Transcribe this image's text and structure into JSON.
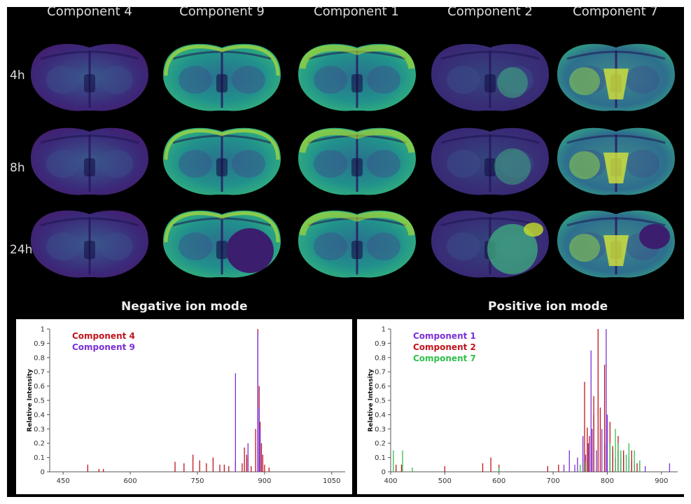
{
  "figure": {
    "columns": [
      "Component 4",
      "Component 9",
      "Component 1",
      "Component 2",
      "Component 7"
    ],
    "rows": [
      "4h",
      "8h",
      "24h"
    ],
    "hot_spots": {
      "Component 4": "none",
      "Component 9": "cortex-rim",
      "Component 1": "upper-cortex",
      "Component 2": "right-hemisphere",
      "Component 7": "central-striatum"
    }
  },
  "colors": {
    "comp4": "#c0141b",
    "comp9": "#7b2fd6",
    "comp1": "#7b2fd6",
    "comp2": "#c0141b",
    "comp7": "#2ec04a",
    "background": "#000000"
  },
  "chart_data": [
    {
      "type": "bar",
      "title": "Negative ion mode",
      "ylabel": "Relative Intensity",
      "xlim": [
        420,
        1080
      ],
      "ylim": [
        0,
        1
      ],
      "xticks": [
        450,
        600,
        750,
        900,
        1050
      ],
      "yticks": [
        0,
        0.1,
        0.2,
        0.3,
        0.4,
        0.5,
        0.6,
        0.7,
        0.8,
        0.9,
        1
      ],
      "legend_position": "top-left",
      "series": [
        {
          "name": "Component 4",
          "color": "#c0141b",
          "x": [
            505,
            530,
            540,
            700,
            720,
            740,
            755,
            770,
            785,
            800,
            810,
            820,
            835,
            850,
            855,
            860,
            863,
            870,
            880,
            885,
            888,
            890,
            893,
            896,
            900,
            910
          ],
          "values": [
            0.05,
            0.02,
            0.02,
            0.07,
            0.06,
            0.12,
            0.08,
            0.06,
            0.1,
            0.05,
            0.05,
            0.04,
            0.07,
            0.06,
            0.17,
            0.12,
            0.1,
            0.04,
            0.3,
            1.0,
            0.6,
            0.35,
            0.2,
            0.12,
            0.05,
            0.03
          ]
        },
        {
          "name": "Component 9",
          "color": "#7b2fd6",
          "x": [
            835,
            863,
            885,
            888,
            890
          ],
          "values": [
            0.69,
            0.2,
            0.98,
            0.45,
            0.3
          ]
        }
      ]
    },
    {
      "type": "bar",
      "title": "Positive ion mode",
      "ylabel": "Relative Intensity",
      "xlim": [
        400,
        930
      ],
      "ylim": [
        0,
        1
      ],
      "xticks": [
        400,
        500,
        600,
        700,
        800,
        900
      ],
      "yticks": [
        0,
        0.1,
        0.2,
        0.3,
        0.4,
        0.5,
        0.6,
        0.7,
        0.8,
        0.9,
        1
      ],
      "legend_position": "top-left",
      "series": [
        {
          "name": "Component 1",
          "color": "#7b2fd6",
          "x": [
            720,
            730,
            740,
            745,
            755,
            760,
            765,
            770,
            772,
            775,
            780,
            790,
            795,
            798,
            800,
            805,
            810,
            815,
            820,
            825,
            830,
            840,
            845,
            850,
            860,
            870,
            915
          ],
          "values": [
            0.05,
            0.15,
            0.05,
            0.1,
            0.25,
            0.12,
            0.2,
            0.85,
            0.3,
            0.4,
            0.15,
            0.3,
            0.2,
            1.0,
            0.4,
            0.2,
            0.15,
            0.1,
            0.15,
            0.1,
            0.12,
            0.1,
            0.08,
            0.06,
            0.07,
            0.04,
            0.06
          ]
        },
        {
          "name": "Component 2",
          "color": "#c0141b",
          "x": [
            410,
            420,
            500,
            570,
            585,
            600,
            690,
            710,
            758,
            763,
            767,
            775,
            783,
            787,
            795,
            805,
            810,
            820,
            830,
            845,
            855
          ],
          "values": [
            0.05,
            0.05,
            0.04,
            0.06,
            0.1,
            0.05,
            0.04,
            0.05,
            0.63,
            0.31,
            0.25,
            0.53,
            1.0,
            0.45,
            0.75,
            0.35,
            0.18,
            0.25,
            0.15,
            0.15,
            0.06
          ]
        },
        {
          "name": "Component 7",
          "color": "#2ec04a",
          "x": [
            405,
            422,
            440,
            600,
            750,
            760,
            805,
            815,
            820,
            825,
            835,
            840,
            850,
            860
          ],
          "values": [
            0.15,
            0.15,
            0.03,
            0.03,
            0.05,
            0.07,
            0.2,
            0.3,
            0.2,
            0.15,
            0.12,
            0.2,
            0.15,
            0.08
          ]
        }
      ]
    }
  ]
}
